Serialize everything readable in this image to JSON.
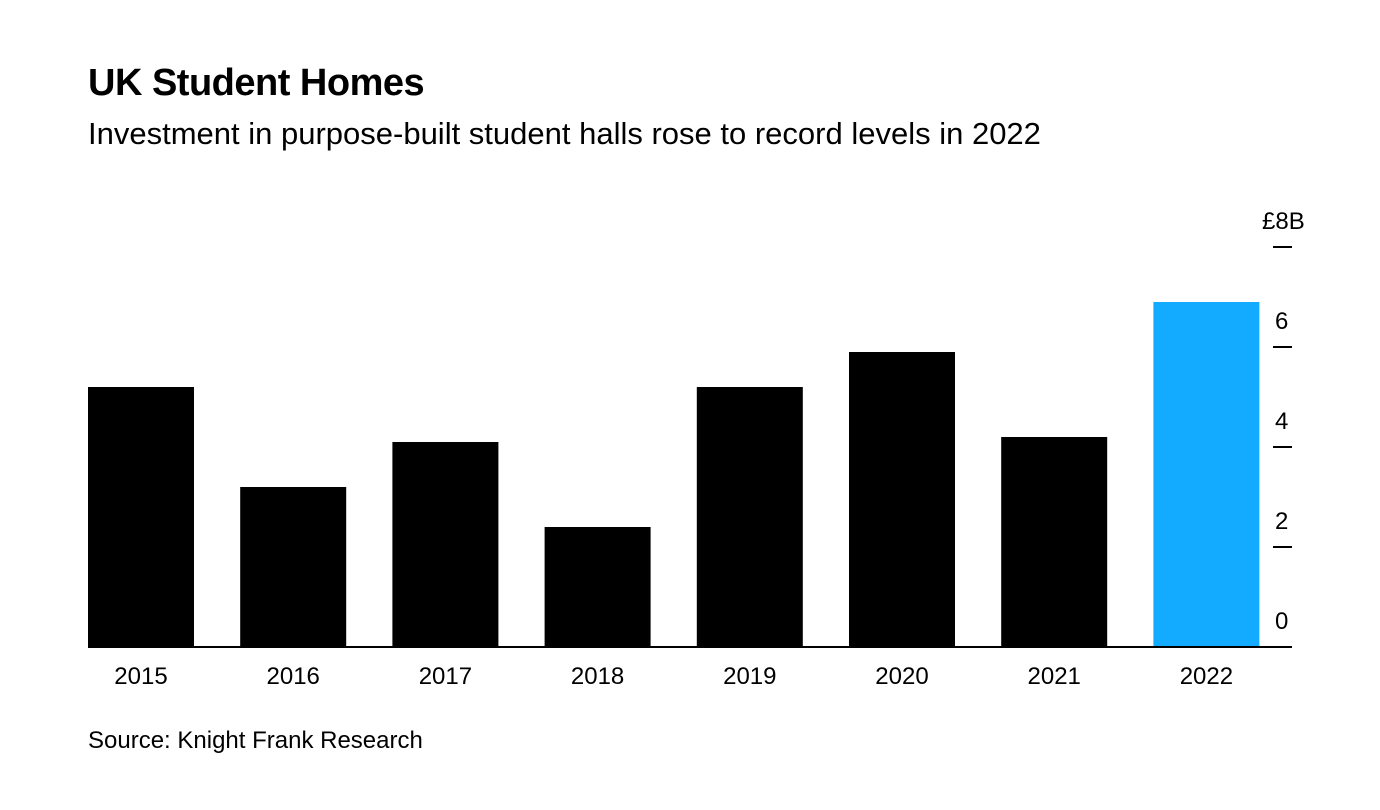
{
  "title": "UK Student Homes",
  "subtitle": "Investment in purpose-built student halls rose to record levels in 2022",
  "source": "Source: Knight Frank Research",
  "colors": {
    "bar": "#000000",
    "highlight": "#12abff",
    "axis": "#000000"
  },
  "chart_data": {
    "type": "bar",
    "title": "UK Student Homes",
    "subtitle": "Investment in purpose-built student halls rose to record levels in 2022",
    "xlabel": "",
    "ylabel": "",
    "unit": "£B",
    "categories": [
      "2015",
      "2016",
      "2017",
      "2018",
      "2019",
      "2020",
      "2021",
      "2022"
    ],
    "values": [
      5.2,
      3.2,
      4.1,
      2.4,
      5.2,
      5.9,
      4.2,
      6.9
    ],
    "highlight_category": "2022",
    "ylim": [
      0,
      8
    ],
    "yticks": [
      0,
      2,
      4,
      6,
      8
    ],
    "ytick_labels": [
      "0",
      "2",
      "4",
      "6",
      "£8B"
    ],
    "yaxis_position": "right",
    "grid": false,
    "legend": "none"
  }
}
